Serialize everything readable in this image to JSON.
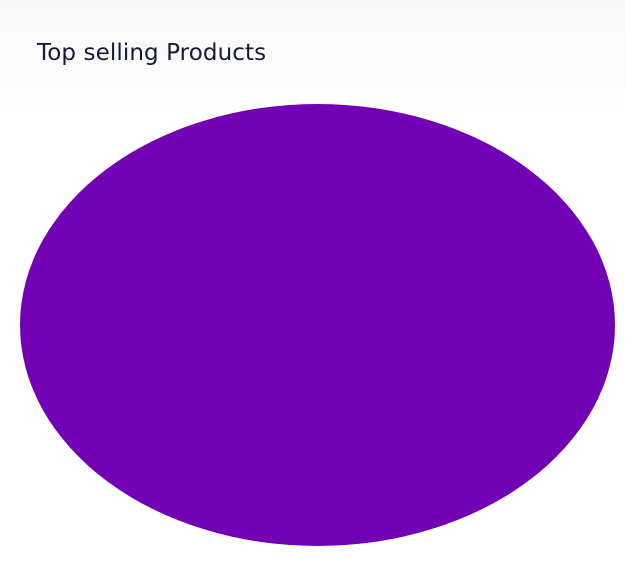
{
  "card": {
    "title": "Top selling Products"
  },
  "chart_data": {
    "type": "pie",
    "title": "Top selling Products",
    "slices": [
      {
        "value": 1,
        "color": "#7200b5"
      }
    ]
  }
}
